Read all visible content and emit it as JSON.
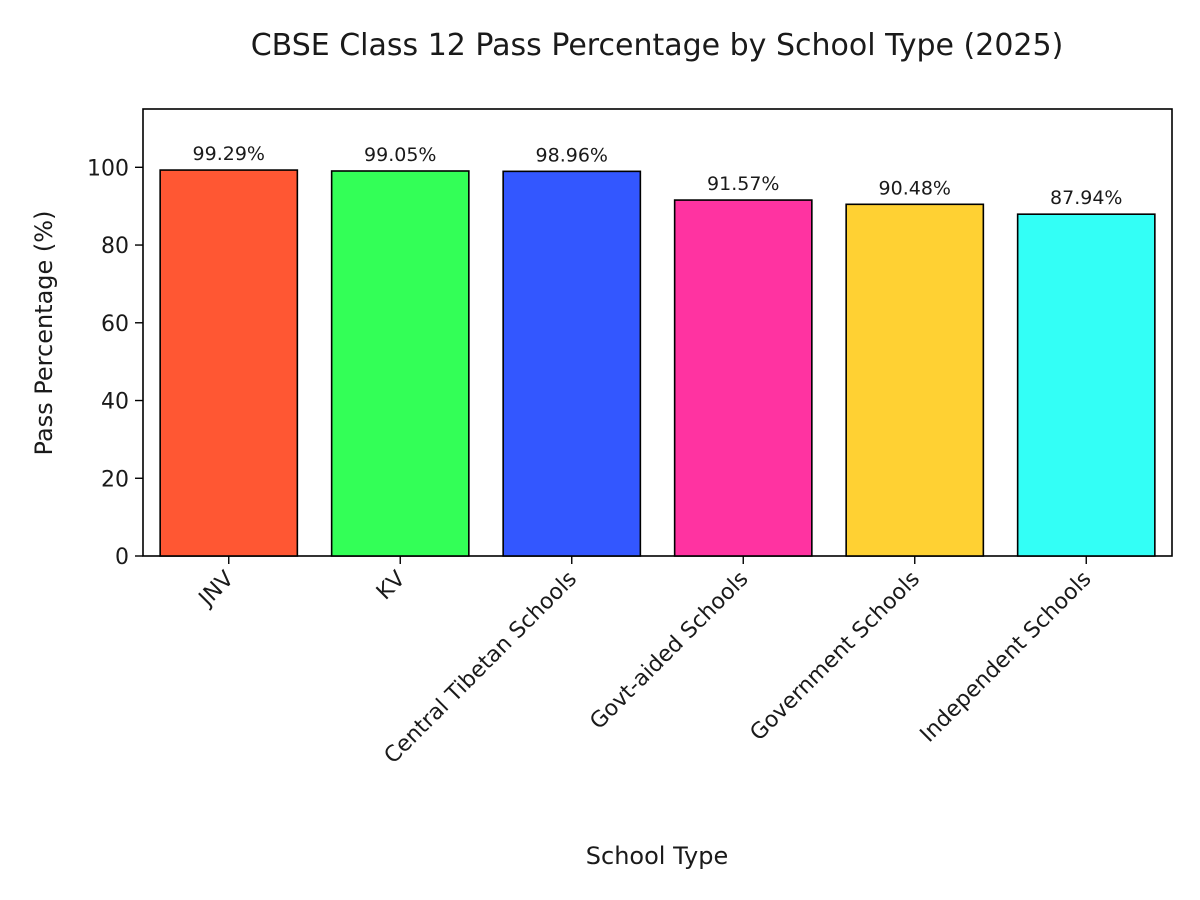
{
  "chart_data": {
    "type": "bar",
    "title": "CBSE Class 12 Pass Percentage by School Type (2025)",
    "xlabel": "School Type",
    "ylabel": "Pass Percentage (%)",
    "categories": [
      "JNV",
      "KV",
      "Central Tibetan Schools",
      "Govt-aided Schools",
      "Government Schools",
      "Independent Schools"
    ],
    "values": [
      99.29,
      99.05,
      98.96,
      91.57,
      90.48,
      87.94
    ],
    "value_labels": [
      "99.29%",
      "99.05%",
      "98.96%",
      "91.57%",
      "90.48%",
      "87.94%"
    ],
    "colors": [
      "#ff5733",
      "#33ff57",
      "#3357ff",
      "#ff33a1",
      "#ffd133",
      "#33fff6"
    ],
    "ylim": [
      0,
      115
    ],
    "yticks": [
      0,
      20,
      40,
      60,
      80,
      100
    ],
    "ytick_labels": [
      "0",
      "20",
      "40",
      "60",
      "80",
      "100"
    ],
    "grid": false,
    "legend": "none"
  }
}
